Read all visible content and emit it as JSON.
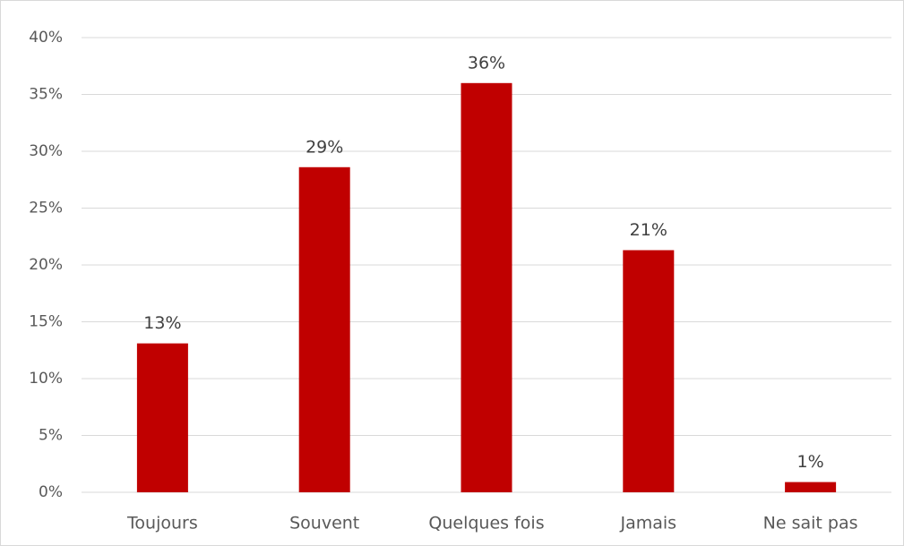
{
  "chart_data": {
    "type": "bar",
    "categories": [
      "Toujours",
      "Souvent",
      "Quelques fois",
      "Jamais",
      "Ne sait pas"
    ],
    "values": [
      13.1,
      28.6,
      36.0,
      21.3,
      0.9
    ],
    "value_labels": [
      "13%",
      "29%",
      "36%",
      "21%",
      "1%"
    ],
    "color": "#c00000",
    "ylim": [
      0,
      40
    ],
    "yticks": [
      {
        "value": 0,
        "label": "0%"
      },
      {
        "value": 5,
        "label": "5%"
      },
      {
        "value": 10,
        "label": "10%"
      },
      {
        "value": 15,
        "label": "15%"
      },
      {
        "value": 20,
        "label": "20%"
      },
      {
        "value": 25,
        "label": "25%"
      },
      {
        "value": 30,
        "label": "30%"
      },
      {
        "value": 35,
        "label": "35%"
      },
      {
        "value": 40,
        "label": "40%"
      }
    ],
    "grid": true
  }
}
